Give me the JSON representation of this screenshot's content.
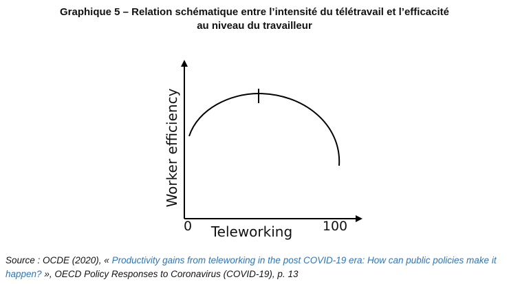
{
  "title": {
    "line1": "Graphique 5 – Relation schématique entre l’intensité du télétravail et l’efficacité",
    "line2": "au niveau du travailleur"
  },
  "diagram": {
    "y_axis_label": "Worker efficiency",
    "x_axis_label": "Teleworking",
    "x_start_label": "0",
    "x_end_label": "100"
  },
  "source": {
    "prefix": "Source : OCDE (2020), « ",
    "link": "Productivity gains from teleworking in the post COVID-19 era: How can public policies make it happen?",
    "suffix": " », OECD Policy Responses to Coronavirus (COVID-19), p. 13"
  }
}
